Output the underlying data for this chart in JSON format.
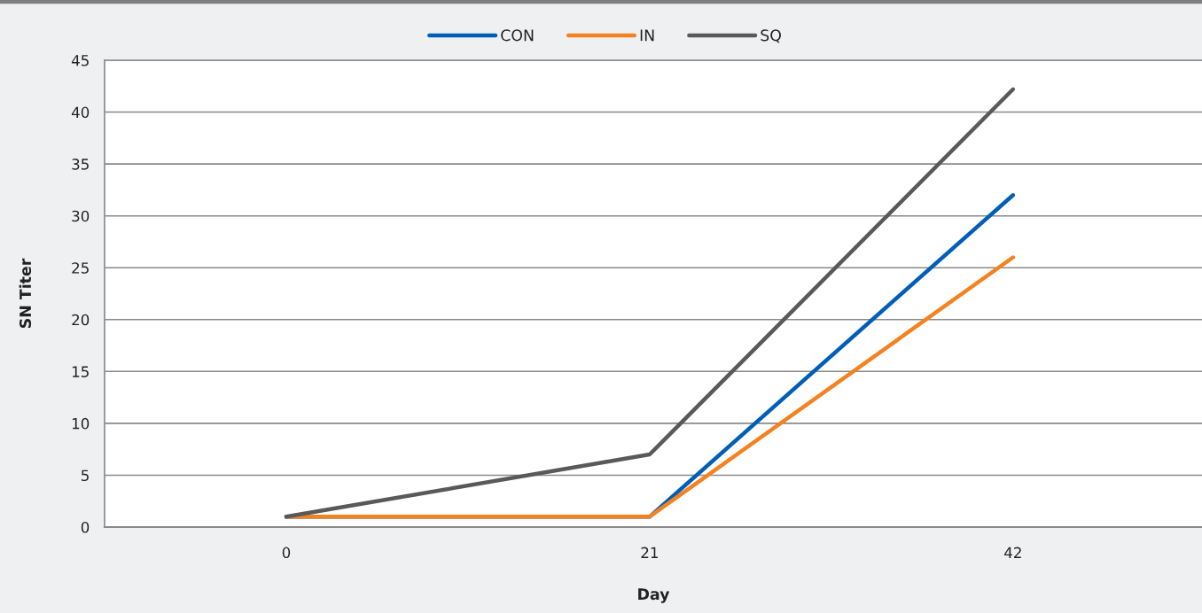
{
  "chart_data": {
    "type": "line",
    "categories": [
      "0",
      "21",
      "42"
    ],
    "series": [
      {
        "name": "CON",
        "color": "#005eb8",
        "values": [
          1,
          1,
          32
        ]
      },
      {
        "name": "IN",
        "color": "#f58220",
        "values": [
          1,
          1,
          26
        ]
      },
      {
        "name": "SQ",
        "color": "#595959",
        "values": [
          1,
          7,
          42.2
        ]
      }
    ],
    "xlabel": "Day",
    "ylabel": "SN Titer",
    "ylim": [
      0,
      45
    ],
    "yticks": [
      0,
      5,
      10,
      15,
      20,
      25,
      30,
      35,
      40,
      45
    ],
    "grid": "y",
    "legend": "top",
    "marker": "none",
    "line_style": "solid"
  }
}
